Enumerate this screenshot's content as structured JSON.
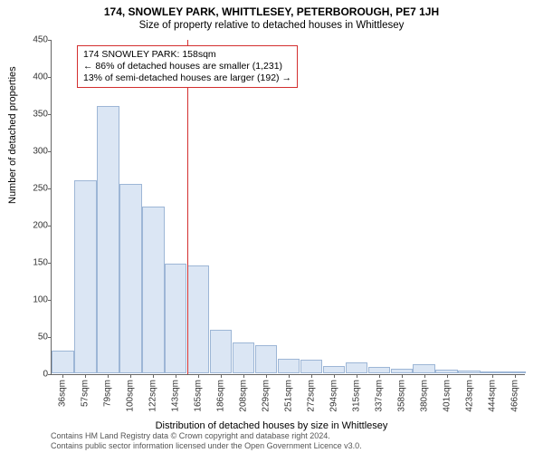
{
  "title": "174, SNOWLEY PARK, WHITTLESEY, PETERBOROUGH, PE7 1JH",
  "subtitle": "Size of property relative to detached houses in Whittlesey",
  "yaxis_label": "Number of detached properties",
  "xaxis_label": "Distribution of detached houses by size in Whittlesey",
  "footer_line1": "Contains HM Land Registry data © Crown copyright and database right 2024.",
  "footer_line2": "Contains public sector information licensed under the Open Government Licence v3.0.",
  "chart": {
    "type": "histogram",
    "ylim": [
      0,
      450
    ],
    "ytick_step": 50,
    "xlabels": [
      "36sqm",
      "57sqm",
      "79sqm",
      "100sqm",
      "122sqm",
      "143sqm",
      "165sqm",
      "186sqm",
      "208sqm",
      "229sqm",
      "251sqm",
      "272sqm",
      "294sqm",
      "315sqm",
      "337sqm",
      "358sqm",
      "380sqm",
      "401sqm",
      "423sqm",
      "444sqm",
      "466sqm"
    ],
    "values": [
      30,
      260,
      360,
      255,
      225,
      148,
      145,
      58,
      42,
      38,
      20,
      18,
      10,
      15,
      8,
      6,
      12,
      5,
      4,
      3,
      2
    ],
    "bar_fill": "#dbe6f4",
    "bar_stroke": "#9db6d6",
    "background": "#ffffff",
    "axis_color": "#666666",
    "ytick_font_size": 10,
    "xtick_font_size": 10,
    "marker": {
      "index": 6,
      "color": "#d32f2f",
      "lines": [
        "174 SNOWLEY PARK: 158sqm",
        "← 86% of detached houses are smaller (1,231)",
        "13% of semi-detached houses are larger (192) →"
      ]
    }
  }
}
